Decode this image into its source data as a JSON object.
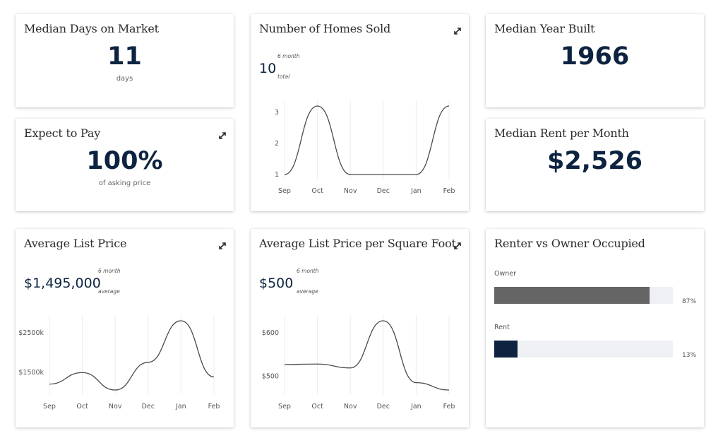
{
  "days_on_market": {
    "title": "Median Days on Market",
    "value": "11",
    "unit": "days"
  },
  "homes_sold": {
    "title": "Number of Homes Sold",
    "value": "10",
    "top": "6 month",
    "bottom": "total",
    "chart_data": {
      "type": "line",
      "x": [
        "Sep",
        "Oct",
        "Nov",
        "Dec",
        "Jan",
        "Feb"
      ],
      "values": [
        1,
        3.2,
        1,
        1,
        1,
        3.2
      ],
      "yticks": [
        1,
        2,
        3
      ],
      "ylim": [
        1,
        3.2
      ],
      "ytick_labels": [
        "1",
        "2",
        "3"
      ],
      "grid": true
    }
  },
  "year_built": {
    "title": "Median Year Built",
    "value": "1966"
  },
  "expect_to_pay": {
    "title": "Expect to Pay",
    "value": "100%",
    "unit": "of asking price"
  },
  "median_rent": {
    "title": "Median Rent per Month",
    "value": "$2,526"
  },
  "avg_list_price": {
    "title": "Average List Price",
    "value": "$1,495,000",
    "top": "6 month",
    "bottom": "average",
    "chart_data": {
      "type": "line",
      "x": [
        "Sep",
        "Oct",
        "Nov",
        "Dec",
        "Jan",
        "Feb"
      ],
      "values": [
        1200,
        1490,
        1050,
        1750,
        2800,
        1380
      ],
      "yticks": [
        1500,
        2500
      ],
      "ytick_labels": [
        "$1500k",
        "$2500k"
      ],
      "ylim": [
        1050,
        2800
      ],
      "grid": true
    }
  },
  "price_per_sqft": {
    "title": "Average List Price per Square Foot",
    "value": "$500",
    "top": "6 month",
    "bottom": "average",
    "chart_data": {
      "type": "line",
      "x": [
        "Sep",
        "Oct",
        "Nov",
        "Dec",
        "Jan",
        "Feb"
      ],
      "values": [
        527,
        528,
        519,
        628,
        485,
        468
      ],
      "yticks": [
        500,
        600
      ],
      "ytick_labels": [
        "$500",
        "$600"
      ],
      "ylim": [
        468,
        628
      ],
      "grid": true
    }
  },
  "renter_owner": {
    "title": "Renter vs Owner Occupied",
    "chart_data": {
      "type": "bar",
      "categories": [
        "Owner",
        "Rent"
      ],
      "values": [
        87,
        13
      ],
      "labels": [
        "87%",
        "13%"
      ],
      "colors": [
        "#656565",
        "#0d2340"
      ]
    }
  },
  "colors": {
    "accent": "#0d2340",
    "line": "#4a4a4a",
    "grid": "#ececec"
  }
}
